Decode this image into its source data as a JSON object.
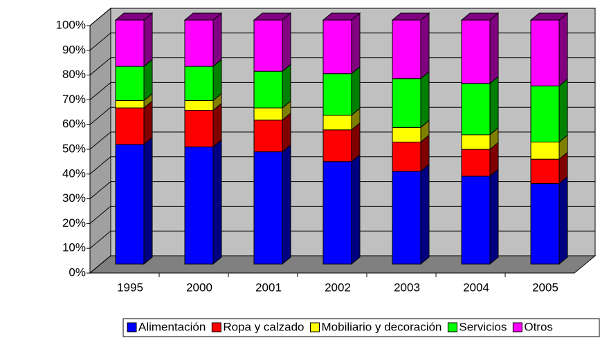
{
  "chart_data": {
    "type": "bar3d_stacked",
    "categories": [
      "1995",
      "2000",
      "2001",
      "2002",
      "2003",
      "2004",
      "2005"
    ],
    "series": [
      {
        "name": "Alimentación",
        "color": "#0000ff",
        "side": "#000080",
        "values": [
          49,
          48,
          46,
          42,
          38,
          36,
          33
        ]
      },
      {
        "name": "Ropa y calzado",
        "color": "#ff0000",
        "side": "#800000",
        "values": [
          15,
          15,
          13,
          13,
          12,
          11,
          10
        ]
      },
      {
        "name": "Mobiliario y decoración",
        "color": "#ffff00",
        "side": "#808000",
        "values": [
          3,
          4,
          5,
          6,
          6,
          6,
          7
        ]
      },
      {
        "name": "Servicios",
        "color": "#00ff00",
        "side": "#008000",
        "values": [
          14,
          14,
          15,
          17,
          20,
          21,
          23
        ]
      },
      {
        "name": "Otros",
        "color": "#ff00ff",
        "side": "#800080",
        "values": [
          19,
          19,
          21,
          22,
          24,
          26,
          27
        ]
      }
    ],
    "ylim": [
      0,
      100
    ],
    "yticks": [
      {
        "value": 0,
        "label": "0%"
      },
      {
        "value": 10,
        "label": "10%"
      },
      {
        "value": 20,
        "label": "20%"
      },
      {
        "value": 30,
        "label": "30%"
      },
      {
        "value": 40,
        "label": "40%"
      },
      {
        "value": 50,
        "label": "50%"
      },
      {
        "value": 60,
        "label": "60%"
      },
      {
        "value": 70,
        "label": "70%"
      },
      {
        "value": 80,
        "label": "80%"
      },
      {
        "value": 90,
        "label": "90%"
      },
      {
        "value": 100,
        "label": "100%"
      }
    ],
    "grid": true,
    "legend": "bottom"
  }
}
